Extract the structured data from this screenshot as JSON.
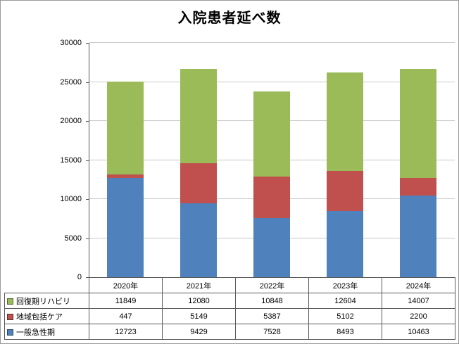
{
  "chart_data": {
    "type": "bar",
    "stacked": true,
    "title": "入院患者延べ数",
    "categories": [
      "2020年",
      "2021年",
      "2022年",
      "2023年",
      "2024年"
    ],
    "series": [
      {
        "name": "一般急性期",
        "color": "#4f81bd",
        "values": [
          12723,
          9429,
          7528,
          8493,
          10463
        ]
      },
      {
        "name": "地域包括ケア",
        "color": "#c0504d",
        "values": [
          447,
          5149,
          5387,
          5102,
          2200
        ]
      },
      {
        "name": "回復期リハビリ",
        "color": "#9bbb59",
        "values": [
          11849,
          12080,
          10848,
          12604,
          14007
        ]
      }
    ],
    "table_row_order": [
      "回復期リハビリ",
      "地域包括ケア",
      "一般急性期"
    ],
    "ylim": [
      0,
      30000
    ],
    "ytick_interval": 5000,
    "yticks": [
      0,
      5000,
      10000,
      15000,
      20000,
      25000,
      30000
    ],
    "grid": true,
    "legend_position": "data-table-left",
    "axis_color": "#595959",
    "gridline_color": "#c8c8c8"
  }
}
